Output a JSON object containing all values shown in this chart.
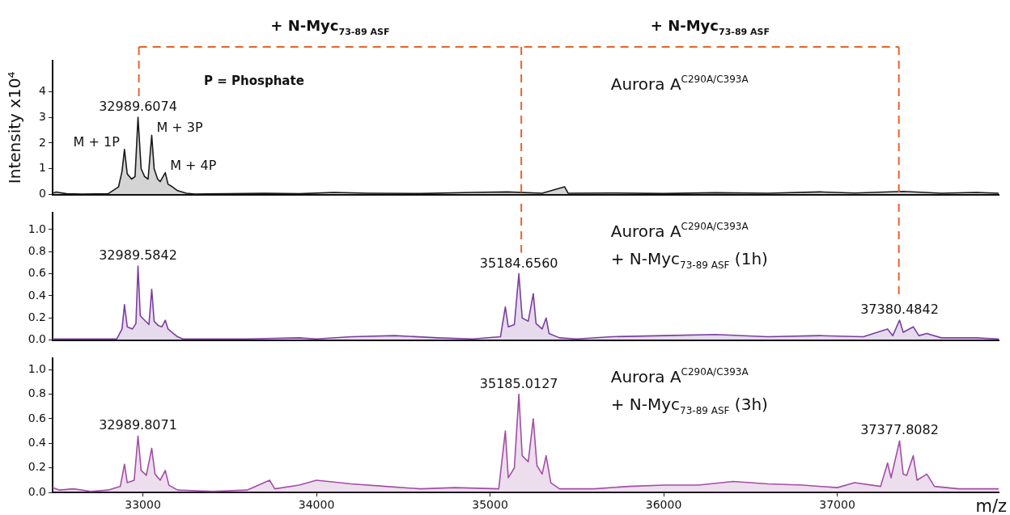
{
  "chart_data": [
    {
      "type": "area",
      "ylabel": "Intensity x10⁴",
      "title": "Aurora A$^{C290A/C393A}$",
      "xlim": [
        32480,
        37930
      ],
      "ylim": [
        0,
        5.2
      ],
      "yticks": [
        0,
        1,
        2,
        3,
        4
      ],
      "tick_labels": "y",
      "marker": "none",
      "ref_lines": [
        {
          "axis": "x",
          "value": 32977,
          "color": "#e8622c",
          "line_style": "dashed"
        },
        {
          "axis": "x",
          "value": 35180,
          "color": "#e8622c",
          "line_style": "dashed"
        },
        {
          "axis": "x",
          "value": 37355,
          "color": "#e8622c",
          "line_style": "dashed"
        }
      ],
      "annotations": [
        "+ N-Myc$_{73-89 ASF}$",
        "+ N-Myc$_{73-89 ASF}$",
        "P = Phosphate",
        {
          "text": "32989.6074",
          "x": 32972,
          "y": 3.0
        },
        {
          "text": "M + 1P",
          "x": 32894,
          "y": 1.75
        },
        {
          "text": "M + 3P",
          "x": 33051,
          "y": 2.3
        },
        {
          "text": "M + 4P",
          "x": 33129,
          "y": 0.85
        }
      ],
      "series": [
        {
          "color": "#1a1a1a",
          "x": [
            32480,
            32500,
            32560,
            32650,
            32800,
            32860,
            32880,
            32894,
            32910,
            32935,
            32955,
            32972,
            32990,
            33010,
            33030,
            33051,
            33065,
            33085,
            33100,
            33129,
            33145,
            33170,
            33200,
            33250,
            33300,
            33500,
            33700,
            33900,
            34100,
            34300,
            34600,
            34900,
            35100,
            35300,
            35430,
            35450,
            35700,
            36000,
            36300,
            36600,
            36900,
            37100,
            37380,
            37600,
            37800,
            37930
          ],
          "values": [
            0.05,
            0.1,
            0.03,
            0.02,
            0.03,
            0.3,
            0.9,
            1.75,
            0.8,
            0.6,
            0.7,
            3.0,
            1.0,
            0.7,
            0.6,
            2.3,
            1.0,
            0.6,
            0.5,
            0.85,
            0.4,
            0.3,
            0.15,
            0.05,
            0.02,
            0.03,
            0.05,
            0.03,
            0.08,
            0.05,
            0.04,
            0.08,
            0.1,
            0.05,
            0.3,
            0.05,
            0.06,
            0.04,
            0.07,
            0.05,
            0.1,
            0.06,
            0.12,
            0.05,
            0.08,
            0.05
          ]
        }
      ]
    },
    {
      "type": "area",
      "title": "Aurora A$^{C290A/C393A}$\n+ N-Myc$_{73-89 ASF}$ (1h)",
      "xlim": [
        32480,
        37930
      ],
      "ylim": [
        0,
        1.15
      ],
      "yticks": [
        {
          "value": 0,
          "label": "0.0"
        },
        {
          "value": 0.2,
          "label": "0.2"
        },
        {
          "value": 0.4,
          "label": "0.4"
        },
        {
          "value": 0.6,
          "label": "0.6"
        },
        {
          "value": 0.8,
          "label": "0.8"
        },
        {
          "value": 1,
          "label": "1.0"
        }
      ],
      "tick_labels": "y",
      "marker": "none",
      "ref_lines": [
        {
          "axis": "x",
          "value": 35180,
          "color": "#e8622c",
          "line_style": "dashed"
        },
        {
          "axis": "x",
          "value": 37355,
          "color": "#e8622c",
          "line_style": "dashed"
        }
      ],
      "annotations": [
        {
          "text": "32989.5842",
          "x": 32972,
          "y": 0.67
        },
        {
          "text": "35184.6560",
          "x": 35166,
          "y": 0.6
        },
        {
          "text": "37380.4842",
          "x": 37359,
          "y": 0.18
        }
      ],
      "series": [
        {
          "color": "#7b3fa0",
          "x": [
            32480,
            32850,
            32880,
            32894,
            32910,
            32940,
            32960,
            32972,
            32985,
            33010,
            33035,
            33051,
            33065,
            33090,
            33110,
            33129,
            33145,
            33175,
            33200,
            33230,
            33600,
            33900,
            34000,
            34200,
            34450,
            34700,
            34900,
            35060,
            35088,
            35105,
            35140,
            35166,
            35185,
            35220,
            35249,
            35265,
            35300,
            35323,
            35340,
            35400,
            35500,
            35700,
            36000,
            36300,
            36600,
            36900,
            37150,
            37290,
            37320,
            37359,
            37380,
            37438,
            37470,
            37516,
            37600,
            37800,
            37930
          ],
          "values": [
            0.01,
            0.01,
            0.1,
            0.32,
            0.12,
            0.1,
            0.15,
            0.67,
            0.22,
            0.18,
            0.14,
            0.46,
            0.17,
            0.13,
            0.12,
            0.18,
            0.1,
            0.06,
            0.03,
            0.01,
            0.01,
            0.02,
            0.01,
            0.03,
            0.04,
            0.02,
            0.01,
            0.03,
            0.3,
            0.12,
            0.14,
            0.6,
            0.2,
            0.17,
            0.42,
            0.15,
            0.1,
            0.2,
            0.06,
            0.02,
            0.01,
            0.03,
            0.04,
            0.05,
            0.03,
            0.04,
            0.03,
            0.1,
            0.04,
            0.18,
            0.07,
            0.12,
            0.04,
            0.06,
            0.02,
            0.02,
            0.01
          ]
        }
      ]
    },
    {
      "type": "area",
      "title": "Aurora A$^{C290A/C393A}$\n+ N-Myc$_{73-89 ASF}$ (3h)",
      "xlabel": "m/z",
      "xlim": [
        32480,
        37930
      ],
      "xticks": [
        33000,
        34000,
        35000,
        36000,
        37000
      ],
      "ylim": [
        0,
        1.09
      ],
      "yticks": [
        {
          "value": 0,
          "label": "0.0"
        },
        {
          "value": 0.2,
          "label": "0.2"
        },
        {
          "value": 0.4,
          "label": "0.4"
        },
        {
          "value": 0.6,
          "label": "0.6"
        },
        {
          "value": 0.8,
          "label": "0.8"
        },
        {
          "value": 1,
          "label": "1.0"
        }
      ],
      "marker": "none",
      "annotations": [
        {
          "text": "32989.8071",
          "x": 32972,
          "y": 0.46
        },
        {
          "text": "35185.0127",
          "x": 35166,
          "y": 0.8
        },
        {
          "text": "37377.8082",
          "x": 37359,
          "y": 0.42
        }
      ],
      "series": [
        {
          "color": "#a24ea6",
          "x": [
            32480,
            32520,
            32600,
            32700,
            32800,
            32870,
            32894,
            32910,
            32950,
            32972,
            32990,
            33020,
            33051,
            33070,
            33100,
            33129,
            33150,
            33200,
            33400,
            33600,
            33730,
            33760,
            33900,
            34000,
            34200,
            34400,
            34600,
            34800,
            35050,
            35088,
            35105,
            35140,
            35166,
            35185,
            35220,
            35249,
            35270,
            35300,
            35323,
            35350,
            35400,
            35600,
            35800,
            36000,
            36200,
            36400,
            36600,
            36800,
            37000,
            37100,
            37250,
            37290,
            37310,
            37359,
            37380,
            37400,
            37438,
            37460,
            37516,
            37560,
            37700,
            37930
          ],
          "values": [
            0.04,
            0.02,
            0.03,
            0.01,
            0.02,
            0.05,
            0.23,
            0.08,
            0.1,
            0.46,
            0.18,
            0.14,
            0.36,
            0.15,
            0.1,
            0.18,
            0.06,
            0.02,
            0.01,
            0.02,
            0.1,
            0.03,
            0.06,
            0.1,
            0.07,
            0.05,
            0.03,
            0.04,
            0.03,
            0.5,
            0.12,
            0.2,
            0.8,
            0.3,
            0.25,
            0.6,
            0.22,
            0.15,
            0.3,
            0.08,
            0.03,
            0.03,
            0.05,
            0.06,
            0.06,
            0.09,
            0.07,
            0.06,
            0.04,
            0.08,
            0.05,
            0.24,
            0.12,
            0.42,
            0.15,
            0.14,
            0.3,
            0.1,
            0.15,
            0.05,
            0.03,
            0.03
          ]
        }
      ]
    }
  ]
}
